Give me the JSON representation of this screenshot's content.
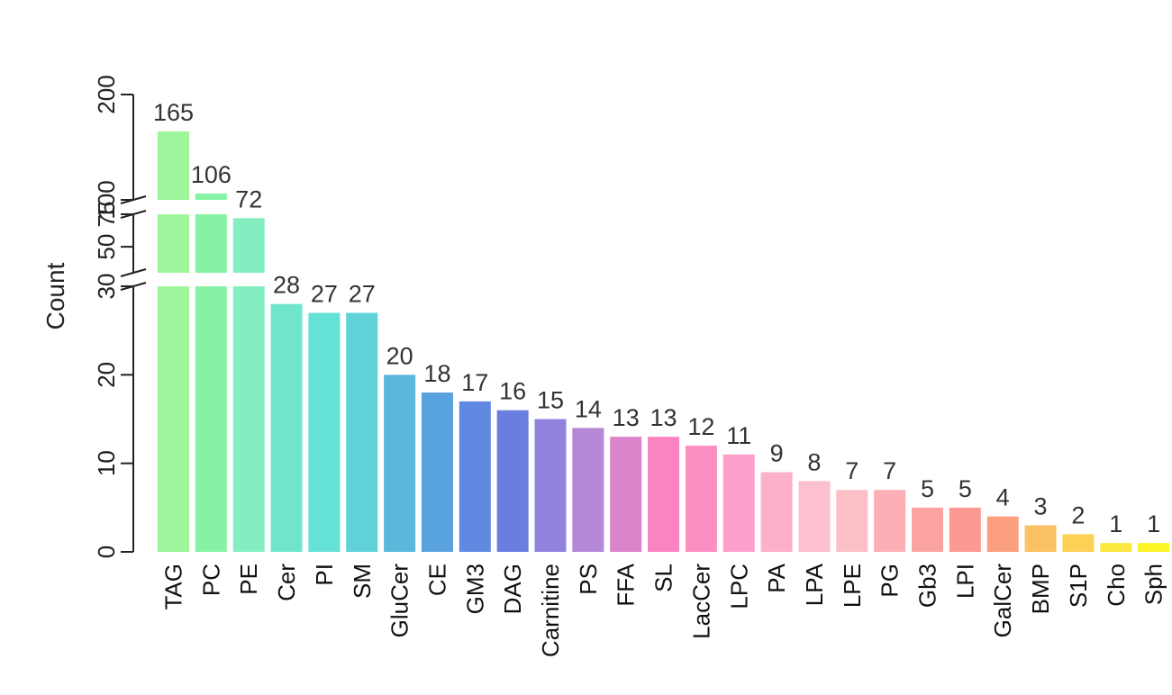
{
  "chart_data": {
    "type": "bar",
    "ylabel": "Count",
    "y_axis": "broken",
    "y_segments": [
      {
        "range": [
          0,
          30
        ],
        "ticks": [
          0,
          10,
          20,
          30
        ]
      },
      {
        "range": [
          30,
          75
        ],
        "ticks": [
          50,
          75
        ]
      },
      {
        "range": [
          100,
          200
        ],
        "ticks": [
          100,
          200
        ]
      }
    ],
    "categories": [
      "TAG",
      "PC",
      "PE",
      "Cer",
      "PI",
      "SM",
      "GluCer",
      "CE",
      "GM3",
      "DAG",
      "Carnitine",
      "PS",
      "FFA",
      "SL",
      "LacCer",
      "LPC",
      "PA",
      "LPA",
      "LPE",
      "PG",
      "Gb3",
      "LPI",
      "GalCer",
      "BMP",
      "S1P",
      "Cho",
      "Sph"
    ],
    "values": [
      165,
      106,
      72,
      28,
      27,
      27,
      20,
      18,
      17,
      16,
      15,
      14,
      13,
      13,
      12,
      11,
      9,
      8,
      7,
      7,
      5,
      5,
      4,
      3,
      2,
      1,
      1
    ],
    "colors": [
      "#9ef59b",
      "#88f2a4",
      "#84eec0",
      "#6fe6cc",
      "#65e2d6",
      "#5fd3d8",
      "#5ab8da",
      "#58a2de",
      "#6089e2",
      "#6a7ee0",
      "#9182dd",
      "#b588d6",
      "#db84cb",
      "#fa84c1",
      "#fb8fc2",
      "#fd9fcb",
      "#fdb0cb",
      "#fdc0d0",
      "#fdbfc6",
      "#fcb0b5",
      "#fba3a3",
      "#fb9a92",
      "#fb9f7e",
      "#fcc165",
      "#fcd155",
      "#fbe83f",
      "#fbf526"
    ],
    "legend": "none",
    "grid": false
  }
}
